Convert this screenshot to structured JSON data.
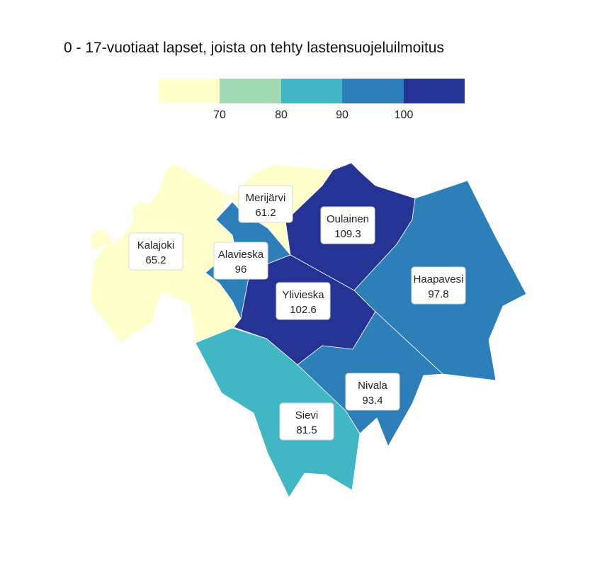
{
  "title": "0 - 17-vuotiaat lapset, joista on tehty lastensuojeluilmoitus",
  "legend": {
    "colors": [
      "#ffffcc",
      "#a1dab4",
      "#41b6c4",
      "#2c7fb8",
      "#253494"
    ],
    "ticks": [
      "70",
      "80",
      "90",
      "100"
    ]
  },
  "chart_data": {
    "type": "choropleth",
    "title": "0 - 17-vuotiaat lapset, joista on tehty lastensuojeluilmoitus",
    "legend_breaks": [
      70,
      80,
      90,
      100
    ],
    "regions": [
      {
        "name": "Kalajoki",
        "value": "65.2",
        "color": "#ffffcc"
      },
      {
        "name": "Merijärvi",
        "value": "61.2",
        "color": "#ffffcc"
      },
      {
        "name": "Oulainen",
        "value": "109.3",
        "color": "#253494"
      },
      {
        "name": "Alavieska",
        "value": "96",
        "color": "#2c7fb8"
      },
      {
        "name": "Ylivieska",
        "value": "102.6",
        "color": "#253494"
      },
      {
        "name": "Haapavesi",
        "value": "97.8",
        "color": "#2c7fb8"
      },
      {
        "name": "Nivala",
        "value": "93.4",
        "color": "#2c7fb8"
      },
      {
        "name": "Sievi",
        "value": "81.5",
        "color": "#41b6c4"
      }
    ]
  }
}
